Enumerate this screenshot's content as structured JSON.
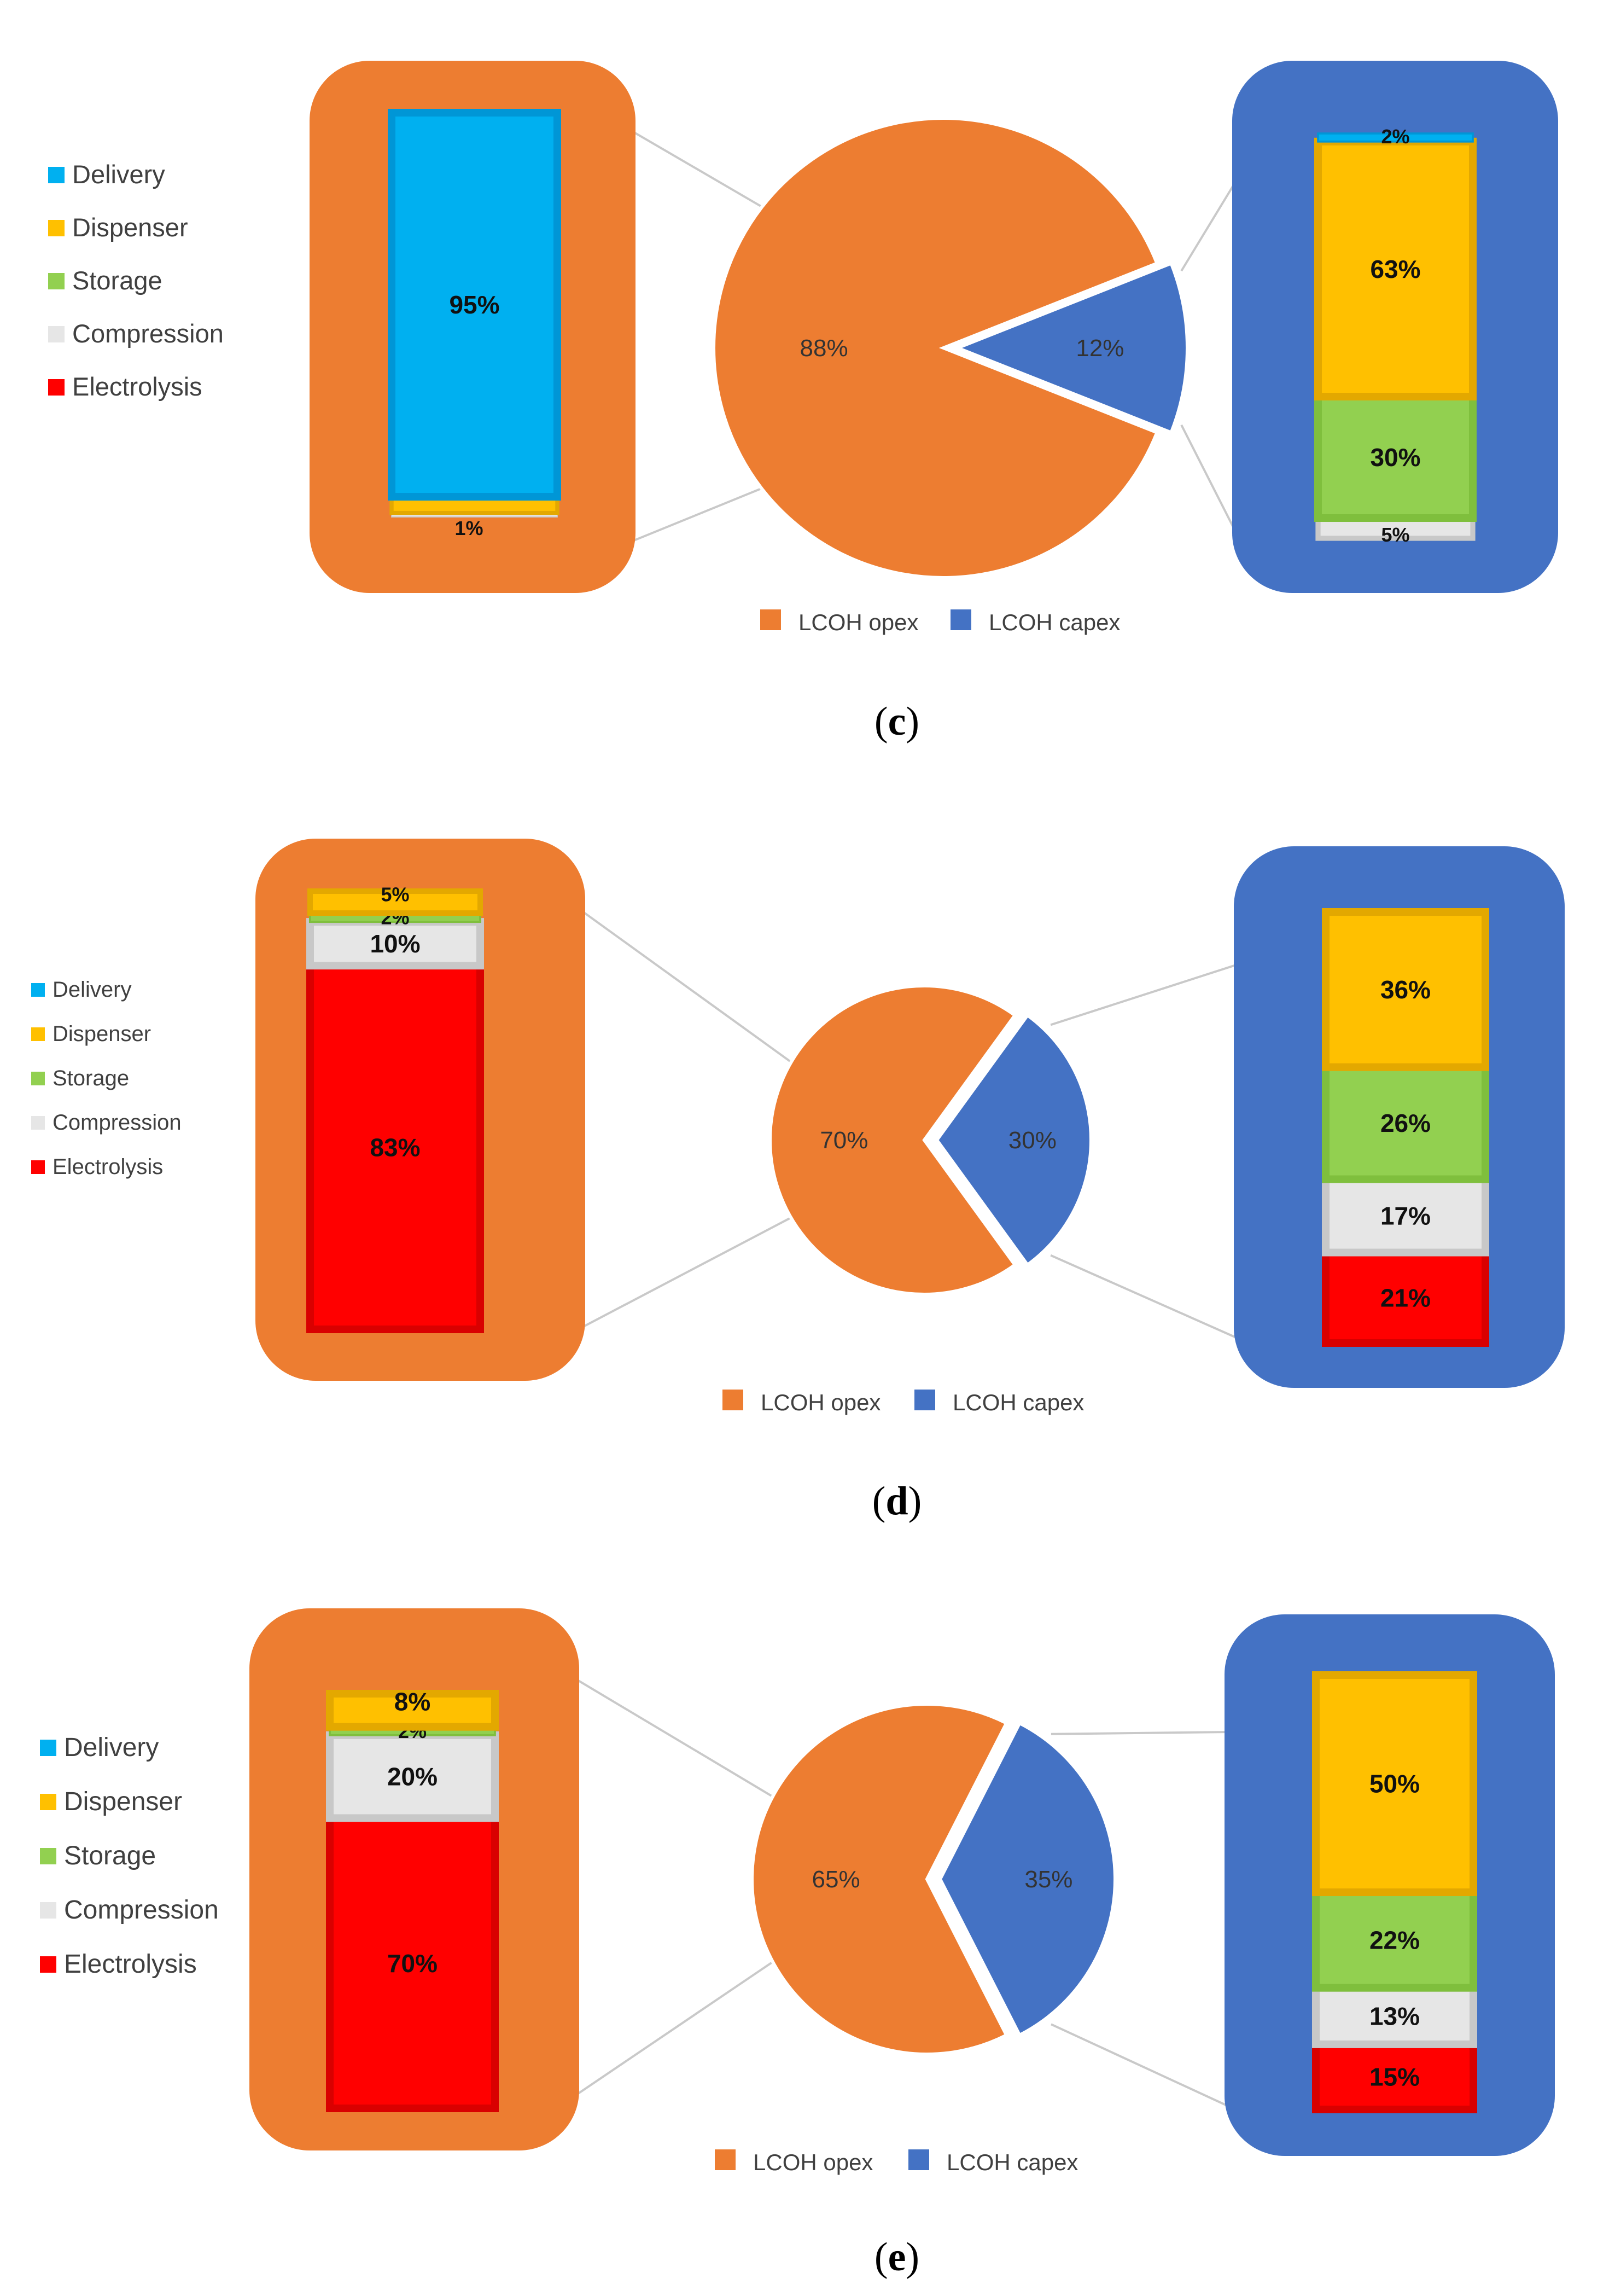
{
  "panels": [
    {
      "caption_open": "(",
      "caption_letter": "c",
      "caption_close": ")",
      "legend_left": [
        "Delivery",
        "Dispenser",
        "Storage",
        "Compression",
        "Electrolysis"
      ],
      "pie_legend": [
        "LCOH opex",
        "LCOH capex"
      ]
    },
    {
      "caption_open": "(",
      "caption_letter": "d",
      "caption_close": ")",
      "legend_left": [
        "Delivery",
        "Dispenser",
        "Storage",
        "Compression",
        "Electrolysis"
      ],
      "pie_legend": [
        "LCOH opex",
        "LCOH capex"
      ]
    },
    {
      "caption_open": "(",
      "caption_letter": "e",
      "caption_close": ")",
      "legend_left": [
        "Delivery",
        "Dispenser",
        "Storage",
        "Compression",
        "Electrolysis"
      ],
      "pie_legend": [
        "LCOH opex",
        "LCOH capex"
      ]
    }
  ],
  "colors": {
    "opex": "#ED7D31",
    "capex": "#4472C4",
    "Delivery": "#00B0F0",
    "Dispenser": "#FFC000",
    "Storage": "#92D050",
    "Compression": "#E6E6E6",
    "Electrolysis": "#FF0000"
  },
  "chart_data": [
    {
      "type": "pie",
      "panel": "c",
      "categories": [
        "LCOH opex",
        "LCOH capex"
      ],
      "values": [
        88,
        12
      ],
      "value_labels": [
        "88%",
        "12%"
      ],
      "breakdowns": [
        {
          "type": "bar",
          "of": "LCOH opex",
          "stacked": true,
          "segments": [
            {
              "name": "Electrolysis",
              "value": 0,
              "label": ""
            },
            {
              "name": "Compression",
              "value": 1,
              "label": "1%"
            },
            {
              "name": "Storage",
              "value": 0,
              "label": ""
            },
            {
              "name": "Dispenser",
              "value": 4,
              "label": "4%"
            },
            {
              "name": "Delivery",
              "value": 95,
              "label": "95%"
            }
          ]
        },
        {
          "type": "bar",
          "of": "LCOH capex",
          "stacked": true,
          "segments": [
            {
              "name": "Electrolysis",
              "value": 0,
              "label": ""
            },
            {
              "name": "Compression",
              "value": 5,
              "label": "5%"
            },
            {
              "name": "Storage",
              "value": 30,
              "label": "30%"
            },
            {
              "name": "Dispenser",
              "value": 63,
              "label": "63%"
            },
            {
              "name": "Delivery",
              "value": 2,
              "label": "2%"
            }
          ]
        }
      ]
    },
    {
      "type": "pie",
      "panel": "d",
      "categories": [
        "LCOH opex",
        "LCOH capex"
      ],
      "values": [
        70,
        30
      ],
      "value_labels": [
        "70%",
        "30%"
      ],
      "breakdowns": [
        {
          "type": "bar",
          "of": "LCOH opex",
          "stacked": true,
          "segments": [
            {
              "name": "Electrolysis",
              "value": 83,
              "label": "83%"
            },
            {
              "name": "Compression",
              "value": 10,
              "label": "10%"
            },
            {
              "name": "Storage",
              "value": 2,
              "label": "2%"
            },
            {
              "name": "Dispenser",
              "value": 5,
              "label": "5%"
            },
            {
              "name": "Delivery",
              "value": 0,
              "label": ""
            }
          ]
        },
        {
          "type": "bar",
          "of": "LCOH capex",
          "stacked": true,
          "segments": [
            {
              "name": "Electrolysis",
              "value": 21,
              "label": "21%"
            },
            {
              "name": "Compression",
              "value": 17,
              "label": "17%"
            },
            {
              "name": "Storage",
              "value": 26,
              "label": "26%"
            },
            {
              "name": "Dispenser",
              "value": 36,
              "label": "36%"
            },
            {
              "name": "Delivery",
              "value": 0,
              "label": ""
            }
          ]
        }
      ]
    },
    {
      "type": "pie",
      "panel": "e",
      "categories": [
        "LCOH opex",
        "LCOH capex"
      ],
      "values": [
        65,
        35
      ],
      "value_labels": [
        "65%",
        "35%"
      ],
      "breakdowns": [
        {
          "type": "bar",
          "of": "LCOH opex",
          "stacked": true,
          "segments": [
            {
              "name": "Electrolysis",
              "value": 70,
              "label": "70%"
            },
            {
              "name": "Compression",
              "value": 20,
              "label": "20%"
            },
            {
              "name": "Storage",
              "value": 2,
              "label": "2%"
            },
            {
              "name": "Dispenser",
              "value": 8,
              "label": "8%"
            },
            {
              "name": "Delivery",
              "value": 0,
              "label": ""
            }
          ]
        },
        {
          "type": "bar",
          "of": "LCOH capex",
          "stacked": true,
          "segments": [
            {
              "name": "Electrolysis",
              "value": 15,
              "label": "15%"
            },
            {
              "name": "Compression",
              "value": 13,
              "label": "13%"
            },
            {
              "name": "Storage",
              "value": 22,
              "label": "22%"
            },
            {
              "name": "Dispenser",
              "value": 50,
              "label": "50%"
            },
            {
              "name": "Delivery",
              "value": 0,
              "label": ""
            }
          ]
        }
      ]
    }
  ]
}
